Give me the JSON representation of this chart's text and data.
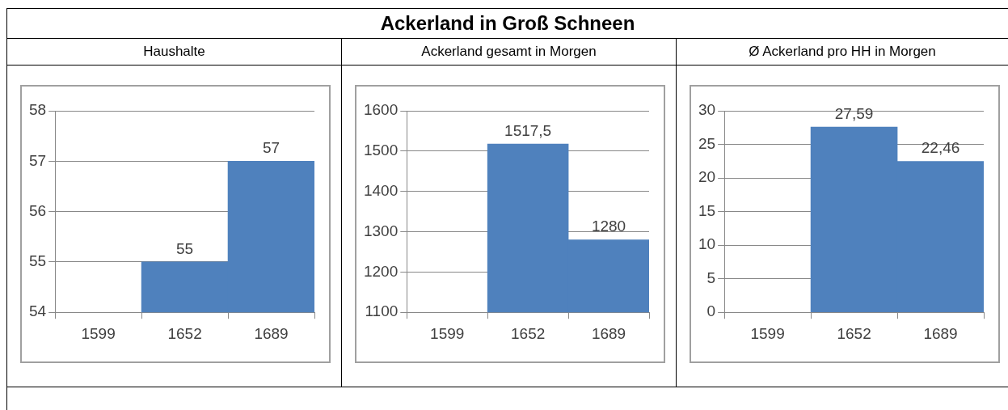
{
  "chart_data": [
    {
      "type": "bar",
      "title": "Haushalte",
      "annotations": [
        "Ackerland in Groß Schneen"
      ],
      "categories": [
        "1599",
        "1652",
        "1689"
      ],
      "values": [
        null,
        55,
        57
      ],
      "color": "#4f81bd",
      "ylim": [
        54,
        58
      ],
      "yticks": [
        54,
        55,
        56,
        57,
        58
      ],
      "grid": "y",
      "legend": false,
      "value_labels": [
        null,
        "55",
        "57"
      ]
    },
    {
      "type": "bar",
      "title": "Ackerland gesamt in Morgen",
      "categories": [
        "1599",
        "1652",
        "1689"
      ],
      "values": [
        null,
        1517.5,
        1280
      ],
      "color": "#4f81bd",
      "ylim": [
        1100,
        1600
      ],
      "yticks": [
        1100,
        1200,
        1300,
        1400,
        1500,
        1600
      ],
      "grid": "y",
      "legend": false,
      "value_labels": [
        null,
        "1517,5",
        "1280"
      ]
    },
    {
      "type": "bar",
      "title": "Ø Ackerland pro HH in Morgen",
      "categories": [
        "1599",
        "1652",
        "1689"
      ],
      "values": [
        null,
        27.59,
        22.46
      ],
      "color": "#4f81bd",
      "ylim": [
        0,
        30
      ],
      "yticks": [
        0,
        5,
        10,
        15,
        20,
        25,
        30
      ],
      "grid": "y",
      "legend": false,
      "value_labels": [
        null,
        "27,59",
        "22,46"
      ]
    }
  ]
}
